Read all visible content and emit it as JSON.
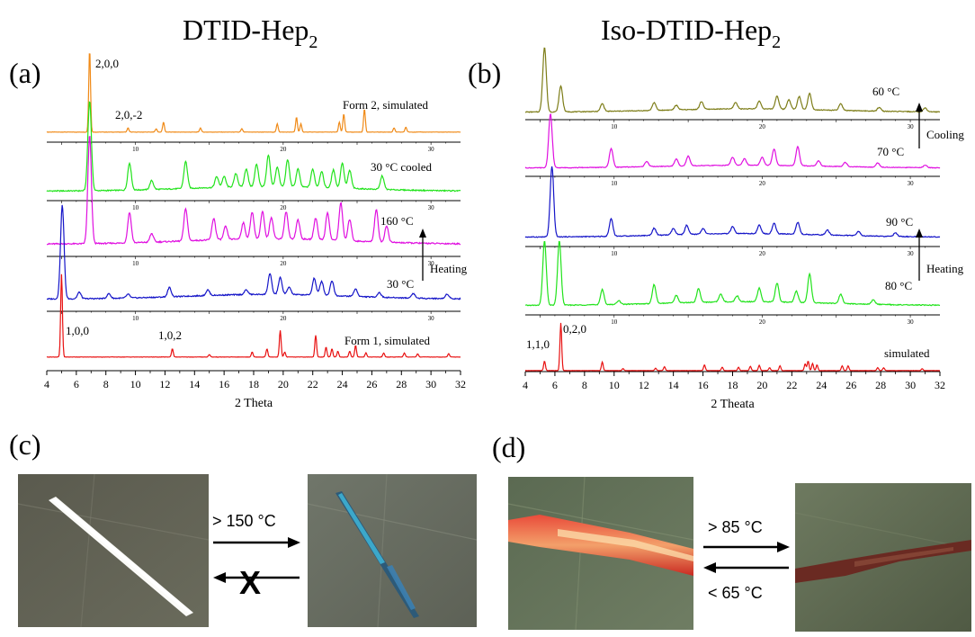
{
  "panel_labels": {
    "a": "(a)",
    "b": "(b)",
    "c": "(c)",
    "d": "(d)"
  },
  "titles": {
    "a": {
      "main": "DTID-Hep",
      "sub": "2"
    },
    "b": {
      "main": "Iso-DTID-Hep",
      "sub": "2"
    }
  },
  "colors": {
    "orange": "#f08a17",
    "green": "#22e31c",
    "magenta": "#e010e0",
    "blue": "#1515c8",
    "red": "#e81010",
    "olive": "#7d7d18"
  },
  "chart_data": [
    {
      "type": "line",
      "panel": "a",
      "xlabel": "2 Theta",
      "xlim": [
        4,
        32
      ],
      "x_ticks": [
        "4",
        "6",
        "8",
        "10",
        "12",
        "14",
        "16",
        "18",
        "20",
        "22",
        "24",
        "26",
        "28",
        "30",
        "32"
      ],
      "inner_axis_ticks": [
        "10",
        "20",
        "30"
      ],
      "series": [
        {
          "name": "Form 2, simulated",
          "color": "orange",
          "peaks": [
            [
              6.9,
              1.0
            ],
            [
              9.5,
              0.05
            ],
            [
              11.4,
              0.04
            ],
            [
              11.9,
              0.12
            ],
            [
              14.4,
              0.05
            ],
            [
              17.2,
              0.04
            ],
            [
              19.6,
              0.1
            ],
            [
              20.9,
              0.18
            ],
            [
              21.2,
              0.1
            ],
            [
              23.8,
              0.12
            ],
            [
              24.1,
              0.22
            ],
            [
              25.5,
              0.28
            ],
            [
              27.5,
              0.05
            ],
            [
              28.3,
              0.06
            ]
          ]
        },
        {
          "name": "30 °C cooled",
          "color": "green",
          "peaks": [
            [
              6.9,
              1.0
            ],
            [
              9.6,
              0.3
            ],
            [
              11.1,
              0.1
            ],
            [
              13.4,
              0.3
            ],
            [
              15.5,
              0.12
            ],
            [
              16.0,
              0.12
            ],
            [
              16.8,
              0.15
            ],
            [
              17.5,
              0.2
            ],
            [
              18.2,
              0.25
            ],
            [
              19.0,
              0.35
            ],
            [
              19.6,
              0.22
            ],
            [
              20.3,
              0.3
            ],
            [
              21.0,
              0.2
            ],
            [
              22.0,
              0.2
            ],
            [
              22.6,
              0.18
            ],
            [
              23.4,
              0.2
            ],
            [
              24.0,
              0.28
            ],
            [
              24.5,
              0.2
            ],
            [
              26.7,
              0.15
            ]
          ]
        },
        {
          "name": "160 °C",
          "color": "magenta",
          "peaks": [
            [
              6.9,
              1.0
            ],
            [
              9.6,
              0.28
            ],
            [
              11.1,
              0.08
            ],
            [
              13.4,
              0.3
            ],
            [
              15.3,
              0.2
            ],
            [
              16.1,
              0.12
            ],
            [
              17.3,
              0.15
            ],
            [
              17.9,
              0.25
            ],
            [
              18.6,
              0.25
            ],
            [
              19.2,
              0.2
            ],
            [
              20.2,
              0.25
            ],
            [
              21.0,
              0.18
            ],
            [
              22.2,
              0.2
            ],
            [
              23.0,
              0.25
            ],
            [
              23.9,
              0.35
            ],
            [
              24.5,
              0.2
            ],
            [
              26.3,
              0.3
            ],
            [
              27.0,
              0.15
            ]
          ]
        },
        {
          "name": "30 °C",
          "color": "blue",
          "peaks": [
            [
              5.05,
              1.0
            ],
            [
              6.2,
              0.07
            ],
            [
              8.2,
              0.05
            ],
            [
              9.5,
              0.04
            ],
            [
              12.3,
              0.1
            ],
            [
              14.9,
              0.06
            ],
            [
              17.5,
              0.05
            ],
            [
              19.1,
              0.22
            ],
            [
              19.8,
              0.18
            ],
            [
              20.4,
              0.08
            ],
            [
              22.1,
              0.18
            ],
            [
              22.6,
              0.15
            ],
            [
              23.3,
              0.16
            ],
            [
              24.9,
              0.08
            ],
            [
              26.5,
              0.05
            ],
            [
              28.8,
              0.05
            ],
            [
              31.1,
              0.05
            ]
          ]
        },
        {
          "name": "Form 1, simulated",
          "color": "red",
          "peaks": [
            [
              5.0,
              1.0
            ],
            [
              12.5,
              0.1
            ],
            [
              15.0,
              0.03
            ],
            [
              17.9,
              0.06
            ],
            [
              18.9,
              0.1
            ],
            [
              19.8,
              0.32
            ],
            [
              20.1,
              0.06
            ],
            [
              22.2,
              0.26
            ],
            [
              22.9,
              0.12
            ],
            [
              23.3,
              0.1
            ],
            [
              23.7,
              0.07
            ],
            [
              24.5,
              0.07
            ],
            [
              24.9,
              0.14
            ],
            [
              25.6,
              0.05
            ],
            [
              26.8,
              0.05
            ],
            [
              28.2,
              0.05
            ],
            [
              29.1,
              0.04
            ],
            [
              31.2,
              0.04
            ]
          ]
        }
      ],
      "annotations": [
        "2,0,0",
        "2,0,-2",
        "1,0,0",
        "1,0,2",
        "Form 2, simulated",
        "30 °C cooled",
        "160 °C",
        "30 °C",
        "Heating",
        "Form 1, simulated"
      ]
    },
    {
      "type": "line",
      "panel": "b",
      "xlabel": "2 Theata",
      "xlim": [
        4,
        32
      ],
      "x_ticks": [
        "4",
        "6",
        "8",
        "10",
        "12",
        "14",
        "16",
        "18",
        "20",
        "22",
        "24",
        "26",
        "28",
        "30",
        "32"
      ],
      "inner_axis_ticks": [
        "10",
        "20",
        "30"
      ],
      "series": [
        {
          "name": "60 °C",
          "color": "olive",
          "peaks": [
            [
              5.3,
              1.0
            ],
            [
              6.4,
              0.4
            ],
            [
              9.2,
              0.12
            ],
            [
              12.7,
              0.12
            ],
            [
              14.2,
              0.07
            ],
            [
              15.9,
              0.12
            ],
            [
              18.2,
              0.1
            ],
            [
              19.8,
              0.12
            ],
            [
              21.0,
              0.2
            ],
            [
              21.8,
              0.15
            ],
            [
              22.5,
              0.2
            ],
            [
              23.2,
              0.25
            ],
            [
              25.3,
              0.1
            ],
            [
              27.9,
              0.06
            ],
            [
              31.0,
              0.06
            ]
          ]
        },
        {
          "name": "70 °C",
          "color": "magenta",
          "peaks": [
            [
              5.7,
              1.0
            ],
            [
              9.8,
              0.35
            ],
            [
              12.2,
              0.1
            ],
            [
              14.2,
              0.13
            ],
            [
              15.0,
              0.18
            ],
            [
              18.0,
              0.15
            ],
            [
              18.8,
              0.12
            ],
            [
              20.0,
              0.15
            ],
            [
              20.8,
              0.3
            ],
            [
              22.4,
              0.35
            ],
            [
              23.8,
              0.1
            ],
            [
              25.6,
              0.08
            ],
            [
              27.8,
              0.08
            ],
            [
              31.0,
              0.05
            ]
          ]
        },
        {
          "name": "90 °C",
          "color": "blue",
          "peaks": [
            [
              5.8,
              1.0
            ],
            [
              9.8,
              0.25
            ],
            [
              12.7,
              0.1
            ],
            [
              14.0,
              0.09
            ],
            [
              14.9,
              0.13
            ],
            [
              16.0,
              0.08
            ],
            [
              18.0,
              0.1
            ],
            [
              19.8,
              0.12
            ],
            [
              20.8,
              0.15
            ],
            [
              22.4,
              0.17
            ],
            [
              24.4,
              0.07
            ],
            [
              26.5,
              0.06
            ],
            [
              29.0,
              0.05
            ]
          ]
        },
        {
          "name": "80 °C",
          "color": "green",
          "peaks": [
            [
              5.3,
              0.85
            ],
            [
              6.3,
              0.85
            ],
            [
              9.2,
              0.2
            ],
            [
              10.3,
              0.05
            ],
            [
              12.7,
              0.25
            ],
            [
              14.2,
              0.1
            ],
            [
              15.7,
              0.18
            ],
            [
              17.2,
              0.1
            ],
            [
              18.3,
              0.08
            ],
            [
              19.8,
              0.18
            ],
            [
              21.0,
              0.25
            ],
            [
              22.3,
              0.15
            ],
            [
              23.2,
              0.38
            ],
            [
              25.3,
              0.12
            ],
            [
              27.5,
              0.06
            ]
          ]
        },
        {
          "name": "simulated",
          "color": "red",
          "peaks": [
            [
              5.3,
              0.2
            ],
            [
              6.4,
              1.0
            ],
            [
              9.2,
              0.18
            ],
            [
              10.6,
              0.04
            ],
            [
              12.8,
              0.05
            ],
            [
              13.4,
              0.08
            ],
            [
              16.1,
              0.12
            ],
            [
              17.3,
              0.07
            ],
            [
              18.4,
              0.07
            ],
            [
              19.2,
              0.09
            ],
            [
              19.8,
              0.11
            ],
            [
              20.5,
              0.06
            ],
            [
              21.2,
              0.1
            ],
            [
              22.9,
              0.14
            ],
            [
              23.1,
              0.2
            ],
            [
              23.4,
              0.15
            ],
            [
              23.7,
              0.12
            ],
            [
              25.4,
              0.1
            ],
            [
              25.8,
              0.1
            ],
            [
              27.8,
              0.06
            ],
            [
              28.2,
              0.06
            ],
            [
              30.8,
              0.04
            ]
          ]
        }
      ],
      "annotations": [
        "1,1,0",
        "0,2,0",
        "60 °C",
        "Cooling",
        "70 °C",
        "90 °C",
        "Heating",
        "80 °C",
        "simulated"
      ]
    }
  ],
  "photos": {
    "c": {
      "left": "white crystal needle (Form 1)",
      "right": "blue crystal needle (Form 2)",
      "forward": "> 150 °C",
      "reverse_blocked_mark": "X"
    },
    "d": {
      "left": "red-orange crystal",
      "right": "dark red-brown crystal",
      "forward": "> 85 °C",
      "reverse": "< 65 °C"
    }
  },
  "text": {
    "a_l1": "2,0,0",
    "a_l2": "2,0,-2",
    "a_l3": "Form 2, simulated",
    "a_l4": "30 °C cooled",
    "a_l5": "160 °C",
    "a_l6": "30 °C",
    "a_l7": "Heating",
    "a_l8": "1,0,0",
    "a_l9": "1,0,2",
    "a_l10": "Form 1, simulated",
    "b_l1": "60 °C",
    "b_l2": "Cooling",
    "b_l3": "70 °C",
    "b_l4": "90 °C",
    "b_l5": "Heating",
    "b_l6": "80 °C",
    "b_l7": "1,1,0",
    "b_l8": "0,2,0",
    "b_l9": "simulated",
    "c_fwd": "> 150 °C",
    "c_x": "X",
    "d_fwd": "> 85 °C",
    "d_rev": "< 65 °C"
  }
}
